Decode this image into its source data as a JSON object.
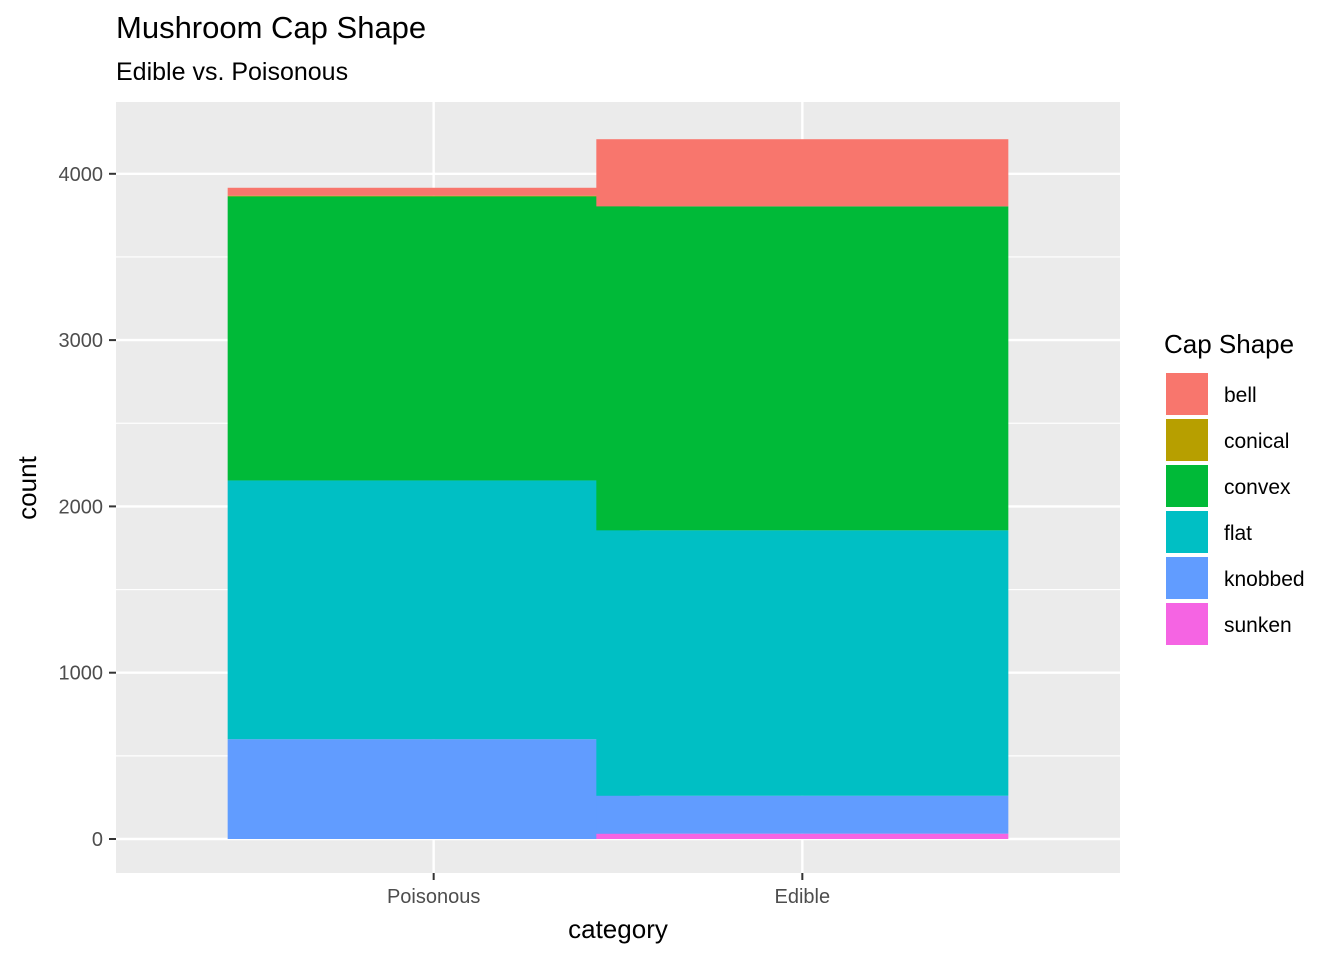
{
  "chart_data": {
    "type": "bar",
    "stacked": true,
    "title": "Mushroom Cap Shape",
    "subtitle": "Edible vs. Poisonous",
    "xlabel": "category",
    "ylabel": "count",
    "categories": [
      "Poisonous",
      "Edible"
    ],
    "ylim": [
      0,
      4400
    ],
    "yticks": [
      "0",
      "1000",
      "2000",
      "3000",
      "4000"
    ],
    "legend": {
      "title": "Cap Shape",
      "position": "right"
    },
    "grid": true,
    "series": [
      {
        "name": "bell",
        "color": "#F8766D",
        "values": [
          48,
          404
        ]
      },
      {
        "name": "conical",
        "color": "#B79F00",
        "values": [
          4,
          0
        ]
      },
      {
        "name": "convex",
        "color": "#00BA38",
        "values": [
          1708,
          1948
        ]
      },
      {
        "name": "flat",
        "color": "#00BFC4",
        "values": [
          1556,
          1596
        ]
      },
      {
        "name": "knobbed",
        "color": "#619CFF",
        "values": [
          600,
          228
        ]
      },
      {
        "name": "sunken",
        "color": "#F564E3",
        "values": [
          0,
          32
        ]
      }
    ]
  }
}
